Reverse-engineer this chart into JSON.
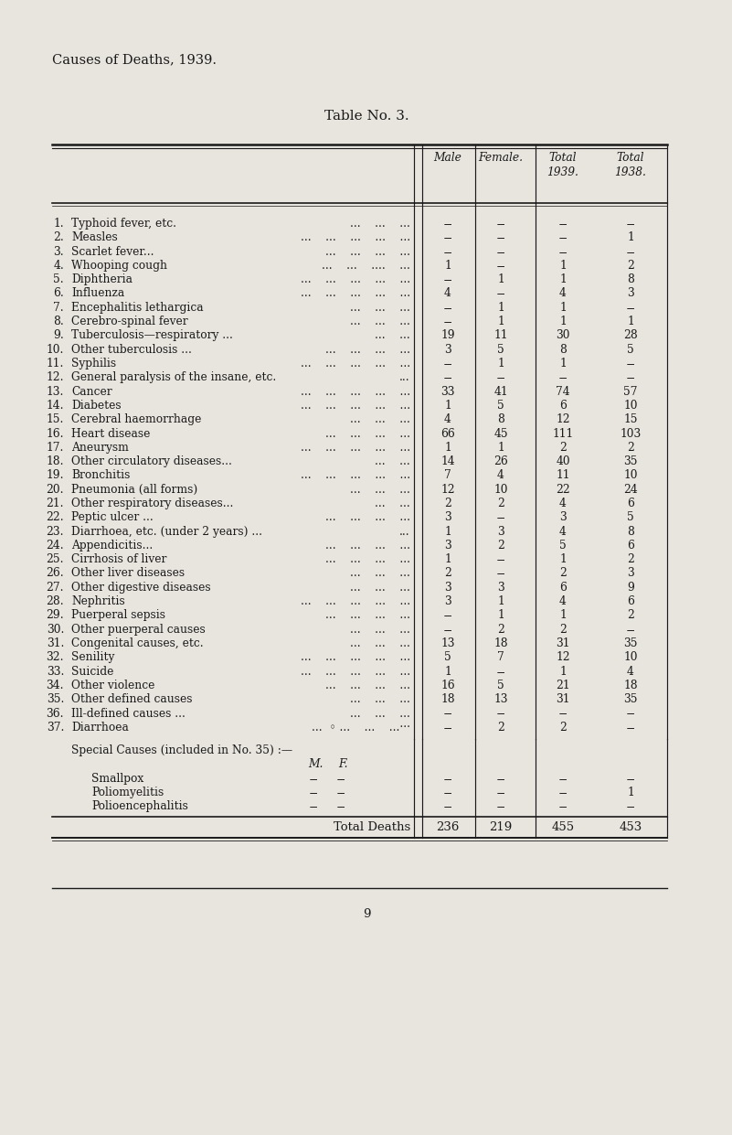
{
  "title": "Causes of Deaths, 1939.",
  "table_title": "Table No. 3.",
  "bg_color": "#e8e5df",
  "text_color": "#1a1a1a",
  "rows": [
    {
      "num": "1.",
      "cause": "Typhoid fever, etc.",
      "dots": "...    ...    ...",
      "male": "−",
      "female": "−",
      "total39": "−",
      "total38": "−"
    },
    {
      "num": "2.",
      "cause": "Measles",
      "dots": "...    ...    ...    ...    ...",
      "male": "−",
      "female": "−",
      "total39": "−",
      "total38": "1"
    },
    {
      "num": "3.",
      "cause": "Scarlet fever...",
      "dots": "...    ...    ...    ...",
      "male": "−",
      "female": "−",
      "total39": "−",
      "total38": "−"
    },
    {
      "num": "4.",
      "cause": "Whooping cough",
      "dots": "...    ...    ....    ...",
      "male": "1",
      "female": "−",
      "total39": "1",
      "total38": "2"
    },
    {
      "num": "5.",
      "cause": "Diphtheria",
      "dots": "...    ...    ...    ...    ...",
      "male": "−",
      "female": "1",
      "total39": "1",
      "total38": "8"
    },
    {
      "num": "6.",
      "cause": "Influenza",
      "dots": "...    ...    ...    ...    ...",
      "male": "4",
      "female": "−",
      "total39": "4",
      "total38": "3"
    },
    {
      "num": "7.",
      "cause": "Encephalitis lethargica",
      "dots": "...    ...    ...",
      "male": "−",
      "female": "1",
      "total39": "1",
      "total38": "−"
    },
    {
      "num": "8.",
      "cause": "Cerebro-spinal fever",
      "dots": "...    ...    ...",
      "male": "−",
      "female": "1",
      "total39": "1",
      "total38": "1"
    },
    {
      "num": "9.",
      "cause": "Tuberculosis—respiratory ...",
      "dots": "...    ...",
      "male": "19",
      "female": "11",
      "total39": "30",
      "total38": "28"
    },
    {
      "num": "10.",
      "cause": "Other tuberculosis ...",
      "dots": "...    ...    ...    ...",
      "male": "3",
      "female": "5",
      "total39": "8",
      "total38": "5"
    },
    {
      "num": "11.",
      "cause": "Syphilis",
      "dots": "...    ...    ...    ...    ...",
      "male": "−",
      "female": "1",
      "total39": "1",
      "total38": "−"
    },
    {
      "num": "12.",
      "cause": "General paralysis of the insane, etc.",
      "dots": "...",
      "male": "−",
      "female": "−",
      "total39": "−",
      "total38": "−"
    },
    {
      "num": "13.",
      "cause": "Cancer",
      "dots": "...    ...    ...    ...    ...",
      "male": "33",
      "female": "41",
      "total39": "74",
      "total38": "57"
    },
    {
      "num": "14.",
      "cause": "Diabetes",
      "dots": "...    ...    ...    ...    ...",
      "male": "1",
      "female": "5",
      "total39": "6",
      "total38": "10"
    },
    {
      "num": "15.",
      "cause": "Cerebral haemorrhage",
      "dots": "...    ...    ...",
      "male": "4",
      "female": "8",
      "total39": "12",
      "total38": "15"
    },
    {
      "num": "16.",
      "cause": "Heart disease",
      "dots": "...    ...    ...    ...",
      "male": "66",
      "female": "45",
      "total39": "111",
      "total38": "103"
    },
    {
      "num": "17.",
      "cause": "Aneurysm",
      "dots": "...    ...    ...    ...    ...",
      "male": "1",
      "female": "1",
      "total39": "2",
      "total38": "2"
    },
    {
      "num": "18.",
      "cause": "Other circulatory diseases...",
      "dots": "...    ...",
      "male": "14",
      "female": "26",
      "total39": "40",
      "total38": "35"
    },
    {
      "num": "19.",
      "cause": "Bronchitis",
      "dots": "...    ...    ...    ...    ...",
      "male": "7",
      "female": "4",
      "total39": "11",
      "total38": "10"
    },
    {
      "num": "20.",
      "cause": "Pneumonia (all forms)",
      "dots": "...    ...    ...",
      "male": "12",
      "female": "10",
      "total39": "22",
      "total38": "24"
    },
    {
      "num": "21.",
      "cause": "Other respiratory diseases...",
      "dots": "...    ...",
      "male": "2",
      "female": "2",
      "total39": "4",
      "total38": "6"
    },
    {
      "num": "22.",
      "cause": "Peptic ulcer ...",
      "dots": "...    ...    ...    ...",
      "male": "3",
      "female": "−",
      "total39": "3",
      "total38": "5"
    },
    {
      "num": "23.",
      "cause": "Diarrhoea, etc. (under 2 years) ...",
      "dots": "...",
      "male": "1",
      "female": "3",
      "total39": "4",
      "total38": "8"
    },
    {
      "num": "24.",
      "cause": "Appendicitis...",
      "dots": "...    ...    ...    ...",
      "male": "3",
      "female": "2",
      "total39": "5",
      "total38": "6"
    },
    {
      "num": "25.",
      "cause": "Cirrhosis of liver",
      "dots": "...    ...    ...    ...",
      "male": "1",
      "female": "−",
      "total39": "1",
      "total38": "2"
    },
    {
      "num": "26.",
      "cause": "Other liver diseases",
      "dots": "...    ...    ...",
      "male": "2",
      "female": "−",
      "total39": "2",
      "total38": "3"
    },
    {
      "num": "27.",
      "cause": "Other digestive diseases",
      "dots": "...    ...    ...",
      "male": "3",
      "female": "3",
      "total39": "6",
      "total38": "9"
    },
    {
      "num": "28.",
      "cause": "Nephritis",
      "dots": "...    ...    ...    ...    ...",
      "male": "3",
      "female": "1",
      "total39": "4",
      "total38": "6"
    },
    {
      "num": "29.",
      "cause": "Puerperal sepsis",
      "dots": "...    ...    ...    ...",
      "male": "−",
      "female": "1",
      "total39": "1",
      "total38": "2"
    },
    {
      "num": "30.",
      "cause": "Other puerperal causes",
      "dots": "...    ...    ...",
      "male": "−",
      "female": "2",
      "total39": "2",
      "total38": "−"
    },
    {
      "num": "31.",
      "cause": "Congenital causes, etc.",
      "dots": "...    ...    ...",
      "male": "13",
      "female": "18",
      "total39": "31",
      "total38": "35"
    },
    {
      "num": "32.",
      "cause": "Senility",
      "dots": "...    ...    ...    ...    ...",
      "male": "5",
      "female": "7",
      "total39": "12",
      "total38": "10"
    },
    {
      "num": "33.",
      "cause": "Suicide",
      "dots": "...    ...    ...    ...    ...",
      "male": "1",
      "female": "−",
      "total39": "1",
      "total38": "4"
    },
    {
      "num": "34.",
      "cause": "Other violence",
      "dots": "...    ...    ...    ...",
      "male": "16",
      "female": "5",
      "total39": "21",
      "total38": "18"
    },
    {
      "num": "35.",
      "cause": "Other defined causes",
      "dots": "...    ...    ...",
      "male": "18",
      "female": "13",
      "total39": "31",
      "total38": "35"
    },
    {
      "num": "36.",
      "cause": "Ill-defined causes ...",
      "dots": "...    ...    ...",
      "male": "−",
      "female": "−",
      "total39": "−",
      "total38": "−"
    },
    {
      "num": "37.",
      "cause": "Diarrhoea",
      "dots": "...  ◦ ...    ...    ...···",
      "male": "−",
      "female": "2",
      "total39": "2",
      "total38": "−"
    }
  ],
  "special": [
    {
      "name": "Smallpox",
      "sm": "−",
      "sf": "−",
      "male": "−",
      "female": "−",
      "total39": "−",
      "total38": "−"
    },
    {
      "name": "Poliomyelitis",
      "sm": "−",
      "sf": "−",
      "male": "−",
      "female": "−",
      "total39": "−",
      "total38": "1"
    },
    {
      "name": "Polioencephalitis",
      "sm": "−",
      "sf": "−",
      "male": "−",
      "female": "−",
      "total39": "−",
      "total38": "−"
    }
  ],
  "total_male": "236",
  "total_female": "219",
  "total_39": "455",
  "total_38": "453",
  "page_number": "9"
}
